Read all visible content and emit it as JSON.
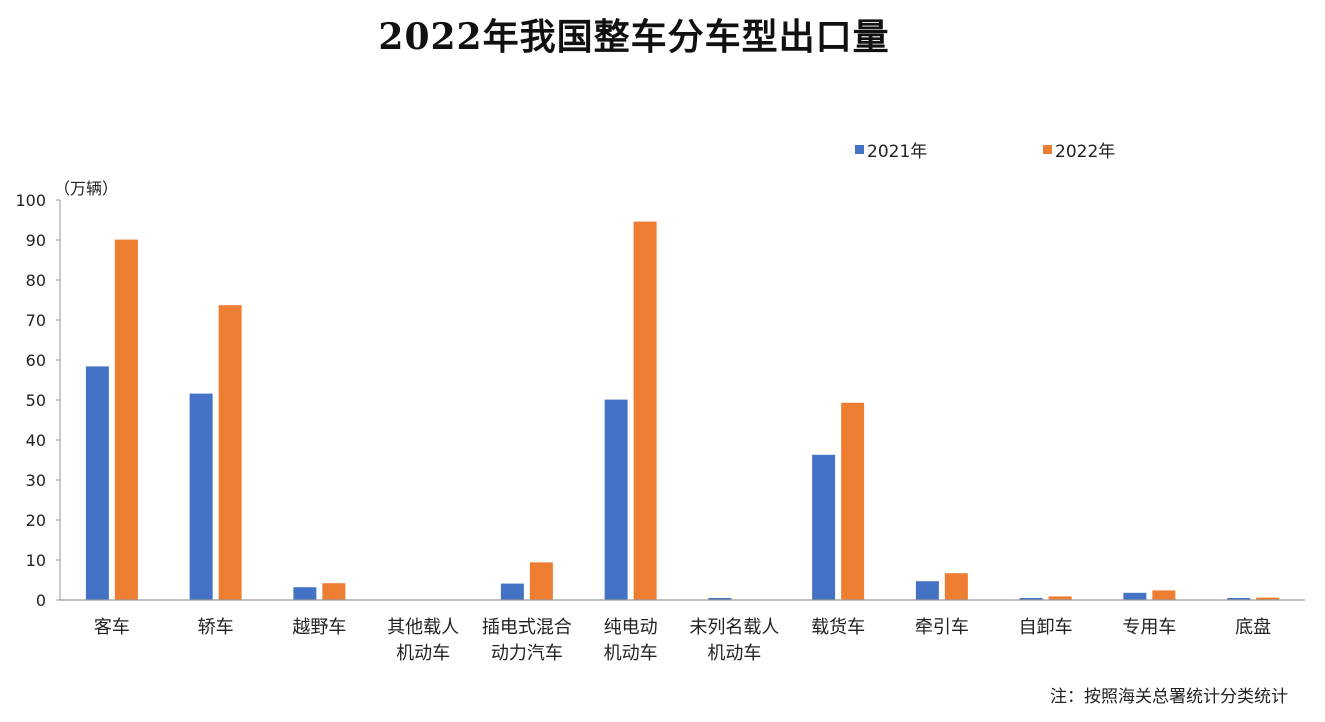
{
  "chart_data": {
    "type": "bar",
    "title": "2022年我国整车分车型出口量",
    "ylabel": "（万辆）",
    "ylim": [
      0,
      100
    ],
    "yticks": [
      0,
      10,
      20,
      30,
      40,
      50,
      60,
      70,
      80,
      90,
      100
    ],
    "categories": [
      [
        "客车"
      ],
      [
        "轿车"
      ],
      [
        "越野车"
      ],
      [
        "其他载人",
        "机动车"
      ],
      [
        "插电式混合",
        "动力汽车"
      ],
      [
        "纯电动",
        "机动车"
      ],
      [
        "未列名载人",
        "机动车"
      ],
      [
        "载货车"
      ],
      [
        "牵引车"
      ],
      [
        "自卸车"
      ],
      [
        "专用车"
      ],
      [
        "底盘"
      ]
    ],
    "series": [
      {
        "name": "2021年",
        "color": "#4472C4",
        "values": [
          58.4,
          51.6,
          3.2,
          0,
          4.1,
          50.1,
          0.5,
          36.3,
          4.7,
          0.5,
          1.8,
          0.5
        ]
      },
      {
        "name": "2022年",
        "color": "#ED7D31",
        "values": [
          90.1,
          73.7,
          4.2,
          0,
          9.4,
          94.6,
          0,
          49.3,
          6.7,
          0.9,
          2.4,
          0.6
        ]
      }
    ],
    "legend_position": "top-right",
    "grid": false
  },
  "note": "注：按照海关总署统计分类统计"
}
